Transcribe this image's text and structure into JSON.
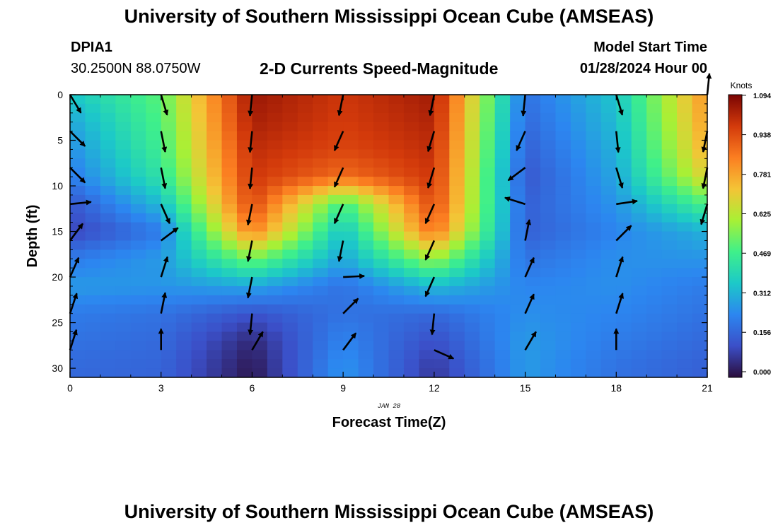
{
  "header": {
    "title": "University of Southern Mississippi Ocean Cube (AMSEAS)",
    "station": "DPIA1",
    "coordinates": "30.2500N  88.0750W",
    "subtitle": "2-D Currents Speed-Magnitude",
    "model_start_label": "Model Start Time",
    "model_start_value": "01/28/2024 Hour 00"
  },
  "footer": {
    "title": "University of Southern Mississippi Ocean Cube (AMSEAS)"
  },
  "chart_data": {
    "type": "heatmap",
    "title": "2-D Currents Speed-Magnitude",
    "xlabel": "Forecast Time(Z)",
    "ylabel": "Depth (ft)",
    "date_label": "JAN 28",
    "xlim": [
      0,
      21
    ],
    "ylim": [
      31,
      0
    ],
    "x_ticks": [
      0,
      3,
      6,
      9,
      12,
      15,
      18,
      21
    ],
    "y_ticks": [
      0,
      5,
      10,
      15,
      20,
      25,
      30
    ],
    "colorbar": {
      "label": "Knots",
      "ticks": [
        "1.094",
        "0.938",
        "0.781",
        "0.625",
        "0.469",
        "0.312",
        "0.156",
        "0.000"
      ],
      "min": 0,
      "max": 1.094,
      "colors": [
        "#2b0d3c",
        "#3b4fc8",
        "#2c86f0",
        "#1cc9c8",
        "#3ff08a",
        "#a8f035",
        "#f4c436",
        "#fb7e21",
        "#d33a0b",
        "#7a0403"
      ]
    },
    "speed_profile_knots": {
      "times": [
        0,
        3,
        6,
        9,
        12,
        15,
        18,
        21
      ],
      "depths": [
        0,
        3,
        6,
        9,
        12,
        15,
        18,
        21,
        24,
        27,
        30
      ],
      "values": [
        [
          0.36,
          0.52,
          1.05,
          0.98,
          1.04,
          0.2,
          0.36,
          0.82
        ],
        [
          0.3,
          0.5,
          1.03,
          0.97,
          1.02,
          0.18,
          0.34,
          0.8
        ],
        [
          0.26,
          0.48,
          1.0,
          0.95,
          1.0,
          0.16,
          0.32,
          0.77
        ],
        [
          0.22,
          0.44,
          0.98,
          0.88,
          0.98,
          0.14,
          0.3,
          0.7
        ],
        [
          0.14,
          0.34,
          0.95,
          0.48,
          0.95,
          0.16,
          0.27,
          0.5
        ],
        [
          0.1,
          0.22,
          0.85,
          0.35,
          0.88,
          0.16,
          0.24,
          0.32
        ],
        [
          0.22,
          0.28,
          0.55,
          0.3,
          0.6,
          0.2,
          0.26,
          0.27
        ],
        [
          0.28,
          0.27,
          0.3,
          0.2,
          0.34,
          0.24,
          0.26,
          0.22
        ],
        [
          0.22,
          0.2,
          0.13,
          0.2,
          0.18,
          0.26,
          0.24,
          0.2
        ],
        [
          0.2,
          0.18,
          0.05,
          0.24,
          0.12,
          0.28,
          0.22,
          0.18
        ],
        [
          0.18,
          0.17,
          0.02,
          0.27,
          0.08,
          0.28,
          0.2,
          0.16
        ]
      ]
    },
    "vectors": [
      {
        "t": 0,
        "d": 0,
        "u": 0.6,
        "v": -1.0
      },
      {
        "t": 0,
        "d": 4,
        "u": 0.7,
        "v": -0.7
      },
      {
        "t": 0,
        "d": 8,
        "u": 0.7,
        "v": -0.7
      },
      {
        "t": 0,
        "d": 12,
        "u": 1.0,
        "v": 0.1
      },
      {
        "t": 0,
        "d": 16,
        "u": 0.6,
        "v": 0.8
      },
      {
        "t": 0,
        "d": 20,
        "u": 0.4,
        "v": 0.9
      },
      {
        "t": 0,
        "d": 24,
        "u": 0.3,
        "v": 0.9
      },
      {
        "t": 0,
        "d": 28,
        "u": 0.3,
        "v": 0.95
      },
      {
        "t": 3,
        "d": 0,
        "u": 0.3,
        "v": -1.0
      },
      {
        "t": 3,
        "d": 4,
        "u": 0.2,
        "v": -1.0
      },
      {
        "t": 3,
        "d": 8,
        "u": 0.2,
        "v": -1.0
      },
      {
        "t": 3,
        "d": 12,
        "u": 0.4,
        "v": -0.9
      },
      {
        "t": 3,
        "d": 16,
        "u": 0.8,
        "v": 0.6
      },
      {
        "t": 3,
        "d": 20,
        "u": 0.3,
        "v": 0.95
      },
      {
        "t": 3,
        "d": 24,
        "u": 0.2,
        "v": 1.0
      },
      {
        "t": 3,
        "d": 28,
        "u": 0.0,
        "v": 1.0
      },
      {
        "t": 6,
        "d": 0,
        "u": -0.1,
        "v": -1.0
      },
      {
        "t": 6,
        "d": 4,
        "u": -0.1,
        "v": -1.0
      },
      {
        "t": 6,
        "d": 8,
        "u": -0.1,
        "v": -1.0
      },
      {
        "t": 6,
        "d": 12,
        "u": -0.2,
        "v": -1.0
      },
      {
        "t": 6,
        "d": 16,
        "u": -0.2,
        "v": -1.0
      },
      {
        "t": 6,
        "d": 20,
        "u": -0.2,
        "v": -1.0
      },
      {
        "t": 6,
        "d": 24,
        "u": -0.1,
        "v": -1.0
      },
      {
        "t": 6,
        "d": 28,
        "u": 0.5,
        "v": 0.85
      },
      {
        "t": 9,
        "d": 0,
        "u": -0.2,
        "v": -1.0
      },
      {
        "t": 9,
        "d": 4,
        "u": -0.4,
        "v": -0.9
      },
      {
        "t": 9,
        "d": 8,
        "u": -0.4,
        "v": -0.9
      },
      {
        "t": 9,
        "d": 12,
        "u": -0.4,
        "v": -0.9
      },
      {
        "t": 9,
        "d": 16,
        "u": -0.2,
        "v": -1.0
      },
      {
        "t": 9,
        "d": 20,
        "u": 1.0,
        "v": 0.05
      },
      {
        "t": 9,
        "d": 24,
        "u": 0.7,
        "v": 0.7
      },
      {
        "t": 9,
        "d": 28,
        "u": 0.6,
        "v": 0.8
      },
      {
        "t": 12,
        "d": 0,
        "u": -0.2,
        "v": -1.0
      },
      {
        "t": 12,
        "d": 4,
        "u": -0.3,
        "v": -1.0
      },
      {
        "t": 12,
        "d": 8,
        "u": -0.3,
        "v": -1.0
      },
      {
        "t": 12,
        "d": 12,
        "u": -0.4,
        "v": -0.9
      },
      {
        "t": 12,
        "d": 16,
        "u": -0.4,
        "v": -0.9
      },
      {
        "t": 12,
        "d": 20,
        "u": -0.4,
        "v": -0.9
      },
      {
        "t": 12,
        "d": 24,
        "u": -0.1,
        "v": -1.0
      },
      {
        "t": 12,
        "d": 28,
        "u": 0.9,
        "v": -0.4
      },
      {
        "t": 15,
        "d": 0,
        "u": -0.1,
        "v": -1.0
      },
      {
        "t": 15,
        "d": 4,
        "u": -0.4,
        "v": -0.9
      },
      {
        "t": 15,
        "d": 8,
        "u": -0.8,
        "v": -0.6
      },
      {
        "t": 15,
        "d": 12,
        "u": -0.95,
        "v": 0.3
      },
      {
        "t": 15,
        "d": 16,
        "u": 0.2,
        "v": 1.0
      },
      {
        "t": 15,
        "d": 20,
        "u": 0.4,
        "v": 0.9
      },
      {
        "t": 15,
        "d": 24,
        "u": 0.4,
        "v": 0.9
      },
      {
        "t": 15,
        "d": 28,
        "u": 0.5,
        "v": 0.85
      },
      {
        "t": 18,
        "d": 0,
        "u": 0.3,
        "v": -1.0
      },
      {
        "t": 18,
        "d": 4,
        "u": 0.1,
        "v": -1.0
      },
      {
        "t": 18,
        "d": 8,
        "u": 0.3,
        "v": -1.0
      },
      {
        "t": 18,
        "d": 12,
        "u": 1.0,
        "v": 0.15
      },
      {
        "t": 18,
        "d": 16,
        "u": 0.7,
        "v": 0.7
      },
      {
        "t": 18,
        "d": 20,
        "u": 0.3,
        "v": 0.95
      },
      {
        "t": 18,
        "d": 24,
        "u": 0.3,
        "v": 0.95
      },
      {
        "t": 18,
        "d": 28,
        "u": 0.0,
        "v": 1.0
      },
      {
        "t": 21,
        "d": 0,
        "u": 0.1,
        "v": 1.0
      },
      {
        "t": 21,
        "d": 4,
        "u": -0.2,
        "v": -1.0
      },
      {
        "t": 21,
        "d": 8,
        "u": -0.2,
        "v": -1.0
      },
      {
        "t": 21,
        "d": 12,
        "u": -0.3,
        "v": -1.0
      }
    ]
  }
}
